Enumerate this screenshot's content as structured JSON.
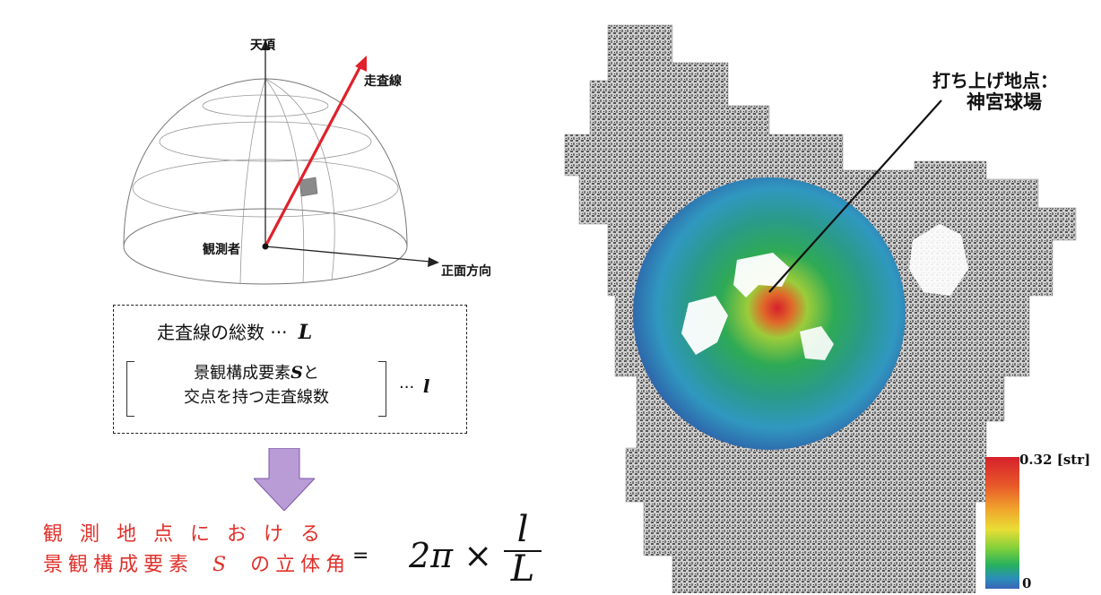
{
  "hemisphere": {
    "zenith": "天頂",
    "scan_line": "走査線",
    "observer": "観測者",
    "front_direction": "正面方向"
  },
  "definition_box": {
    "total_text": "走査線の総数 ···",
    "total_symbol": "L",
    "count_line1_pre": "景観構成要素",
    "count_line1_symbol": "S",
    "count_line1_post": "と",
    "count_line2": "交点を持つ走査線数",
    "count_suffix": "···",
    "count_symbol": "l"
  },
  "formula": {
    "line1": "観 測 地 点 に お け る",
    "line2_pre": "景観構成要素",
    "line2_symbol": "S",
    "line2_post": "の立体角",
    "equals": "=",
    "expression": "2π ×",
    "numerator": "l",
    "denominator": "L"
  },
  "map": {
    "launch_label": "打ち上げ地点：",
    "launch_place": "神宮球場"
  },
  "colorbar": {
    "max_label": "0.32 [str]",
    "min_label": "0"
  },
  "colors": {
    "scan_line": "#e0202a",
    "formula_text": "#e0302a",
    "arrow_fill": "#b99bd6"
  }
}
